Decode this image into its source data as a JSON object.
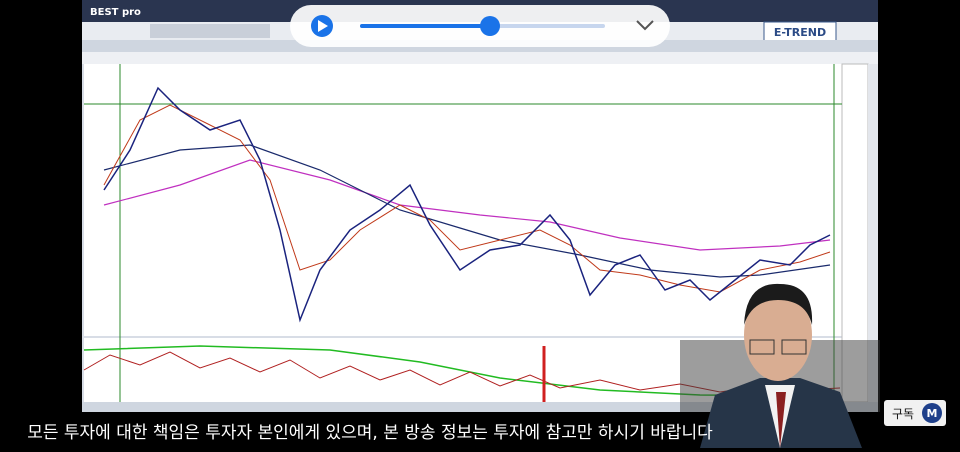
{
  "app": {
    "logo": "BEST pro",
    "brand": "E-TREND"
  },
  "subtitle": "모든 투자에 대한 책임은 투자자 본인에게 있으며, 본 방송 정보는 투자에 참고만 하시기 바랍니다",
  "subscribe": "구독",
  "channel_icon": "M"
}
